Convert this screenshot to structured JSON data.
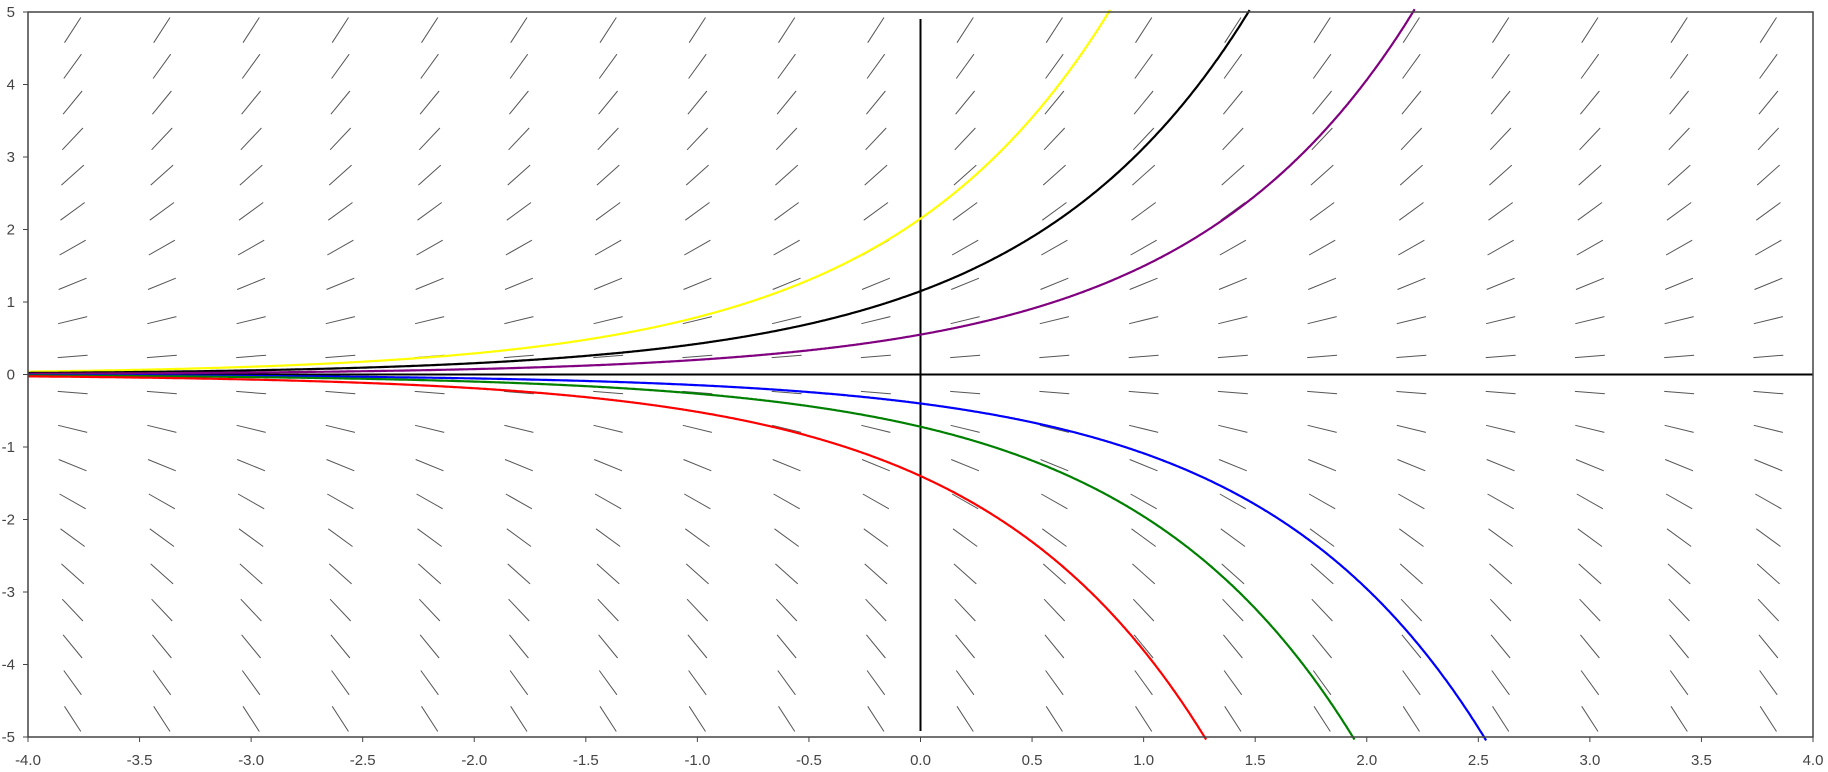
{
  "chart_data": {
    "type": "line",
    "title": "",
    "xlabel": "",
    "ylabel": "",
    "xlim": [
      -4.0,
      4.0
    ],
    "ylim": [
      -5,
      5
    ],
    "x_ticks": [
      "-4.0",
      "-3.5",
      "-3.0",
      "-2.5",
      "-2.0",
      "-1.5",
      "-1.0",
      "-0.5",
      "0.0",
      "0.5",
      "1.0",
      "1.5",
      "2.0",
      "2.5",
      "3.0",
      "3.5",
      "4.0"
    ],
    "y_ticks": [
      "5",
      "4",
      "3",
      "2",
      "1",
      "0",
      "-1",
      "-2",
      "-3",
      "-4",
      "-5"
    ],
    "grid": false,
    "legend": "none",
    "slope_field": {
      "equation": "dy/dx = y",
      "x_values": [
        -3.8,
        -3.4,
        -3.0,
        -2.6,
        -2.2,
        -1.8,
        -1.4,
        -1.0,
        -0.6,
        -0.2,
        0.2,
        0.6,
        1.0,
        1.4,
        1.8,
        2.2,
        2.6,
        3.0,
        3.4,
        3.8
      ],
      "y_values": [
        4.75,
        4.25,
        3.75,
        3.25,
        2.75,
        2.25,
        1.75,
        1.25,
        0.75,
        0.25,
        -0.25,
        -0.75,
        -1.25,
        -1.75,
        -2.25,
        -2.75,
        -3.25,
        -3.75,
        -4.25,
        -4.75
      ],
      "color": "#555555"
    },
    "series": [
      {
        "y0": 2.15,
        "color": "#ffff00"
      },
      {
        "y0": 1.15,
        "color": "#000000"
      },
      {
        "y0": 0.55,
        "color": "#800080"
      },
      {
        "y0": -0.4,
        "color": "#0000ff"
      },
      {
        "y0": -0.72,
        "color": "#008000"
      },
      {
        "y0": -1.4,
        "color": "#ff0000"
      }
    ]
  }
}
